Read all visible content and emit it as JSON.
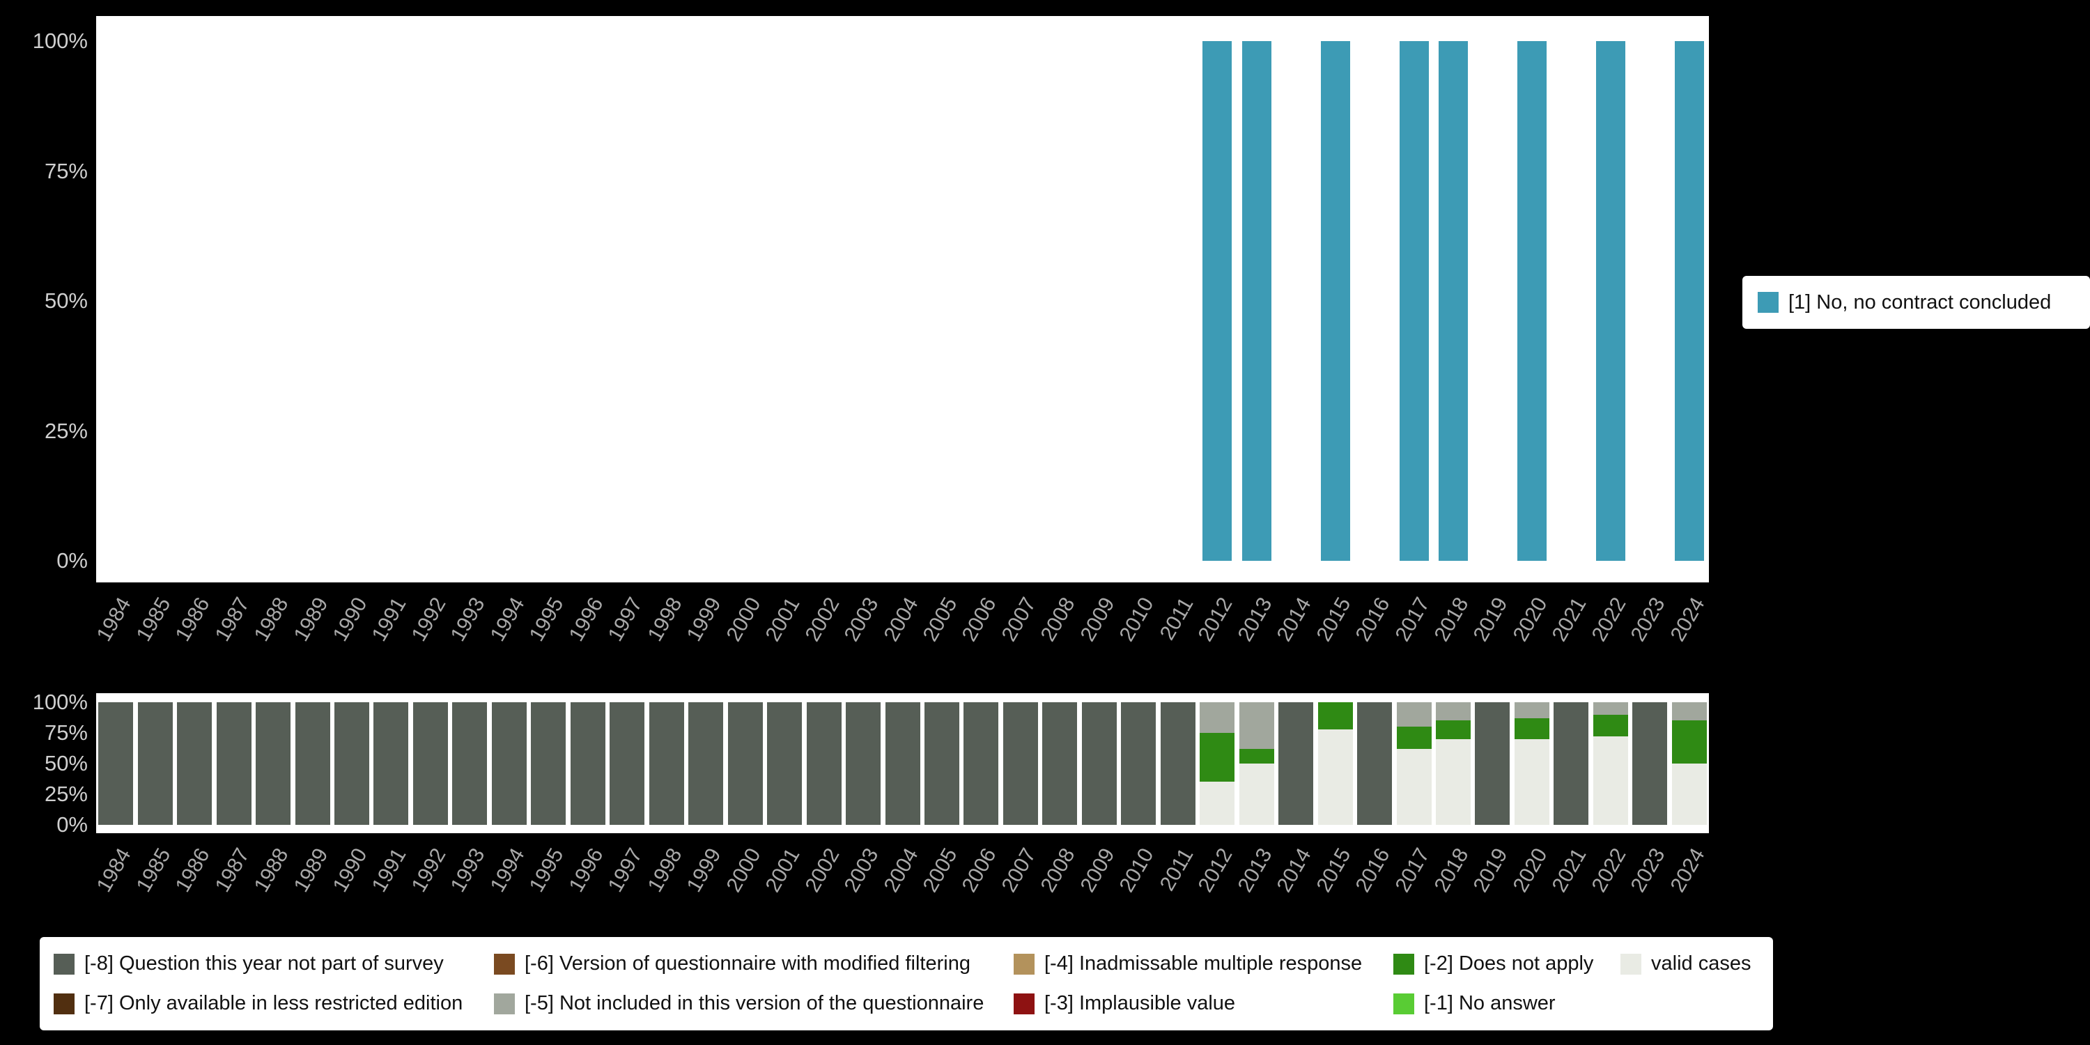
{
  "page": {
    "background": "#000000"
  },
  "axis": {
    "yticks": [
      "0%",
      "25%",
      "50%",
      "75%",
      "100%"
    ]
  },
  "chart_data": [
    {
      "id": "answers",
      "type": "bar",
      "stacked": true,
      "percent": true,
      "title": "",
      "xlabel": "",
      "ylabel": "",
      "ylim": [
        0,
        100
      ],
      "grid": false,
      "legend_position": "right",
      "yticks": [
        "0%",
        "25%",
        "50%",
        "75%",
        "100%"
      ],
      "categories": [
        "1984",
        "1985",
        "1986",
        "1987",
        "1988",
        "1989",
        "1990",
        "1991",
        "1992",
        "1993",
        "1994",
        "1995",
        "1996",
        "1997",
        "1998",
        "1999",
        "2000",
        "2001",
        "2002",
        "2003",
        "2004",
        "2005",
        "2006",
        "2007",
        "2008",
        "2009",
        "2010",
        "2011",
        "2012",
        "2013",
        "2014",
        "2015",
        "2016",
        "2017",
        "2018",
        "2019",
        "2020",
        "2021",
        "2022",
        "2023",
        "2024"
      ],
      "series": [
        {
          "name": "[1] No, no contract concluded",
          "color": "#3d9bb5",
          "values": [
            0,
            0,
            0,
            0,
            0,
            0,
            0,
            0,
            0,
            0,
            0,
            0,
            0,
            0,
            0,
            0,
            0,
            0,
            0,
            0,
            0,
            0,
            0,
            0,
            0,
            0,
            0,
            0,
            100,
            100,
            0,
            100,
            0,
            100,
            100,
            0,
            100,
            0,
            100,
            0,
            100
          ]
        }
      ],
      "legend": {
        "items": [
          {
            "label": "[1] No, no contract concluded",
            "color": "#3d9bb5"
          }
        ]
      }
    },
    {
      "id": "missings",
      "type": "bar",
      "stacked": true,
      "percent": true,
      "title": "",
      "xlabel": "",
      "ylabel": "",
      "ylim": [
        0,
        100
      ],
      "grid": false,
      "legend_position": "bottom",
      "yticks": [
        "0%",
        "25%",
        "50%",
        "75%",
        "100%"
      ],
      "categories": [
        "1984",
        "1985",
        "1986",
        "1987",
        "1988",
        "1989",
        "1990",
        "1991",
        "1992",
        "1993",
        "1994",
        "1995",
        "1996",
        "1997",
        "1998",
        "1999",
        "2000",
        "2001",
        "2002",
        "2003",
        "2004",
        "2005",
        "2006",
        "2007",
        "2008",
        "2009",
        "2010",
        "2011",
        "2012",
        "2013",
        "2014",
        "2015",
        "2016",
        "2017",
        "2018",
        "2019",
        "2020",
        "2021",
        "2022",
        "2023",
        "2024"
      ],
      "series": [
        {
          "name": "valid cases",
          "color": "#e9ebe4",
          "values": [
            0,
            0,
            0,
            0,
            0,
            0,
            0,
            0,
            0,
            0,
            0,
            0,
            0,
            0,
            0,
            0,
            0,
            0,
            0,
            0,
            0,
            0,
            0,
            0,
            0,
            0,
            0,
            0,
            35,
            50,
            0,
            78,
            0,
            62,
            70,
            0,
            70,
            0,
            72,
            0,
            50
          ]
        },
        {
          "name": "[-2] Does not apply",
          "color": "#2f8a14",
          "values": [
            0,
            0,
            0,
            0,
            0,
            0,
            0,
            0,
            0,
            0,
            0,
            0,
            0,
            0,
            0,
            0,
            0,
            0,
            0,
            0,
            0,
            0,
            0,
            0,
            0,
            0,
            0,
            0,
            40,
            12,
            0,
            22,
            0,
            18,
            15,
            0,
            17,
            0,
            18,
            0,
            35
          ]
        },
        {
          "name": "[-5] Not included in this version of the questionnaire",
          "color": "#a1a79d",
          "values": [
            0,
            0,
            0,
            0,
            0,
            0,
            0,
            0,
            0,
            0,
            0,
            0,
            0,
            0,
            0,
            0,
            0,
            0,
            0,
            0,
            0,
            0,
            0,
            0,
            0,
            0,
            0,
            0,
            25,
            38,
            0,
            0,
            0,
            20,
            15,
            0,
            13,
            0,
            10,
            0,
            15
          ]
        },
        {
          "name": "[-8] Question this year not part of survey",
          "color": "#565e56",
          "values": [
            100,
            100,
            100,
            100,
            100,
            100,
            100,
            100,
            100,
            100,
            100,
            100,
            100,
            100,
            100,
            100,
            100,
            100,
            100,
            100,
            100,
            100,
            100,
            100,
            100,
            100,
            100,
            100,
            0,
            0,
            100,
            0,
            100,
            0,
            0,
            100,
            0,
            100,
            0,
            100,
            0
          ]
        }
      ],
      "legend": {
        "items": [
          {
            "label": "[-8] Question this year not part of survey",
            "color": "#565e56"
          },
          {
            "label": "[-7] Only available in less restricted edition",
            "color": "#512f10"
          },
          {
            "label": "[-6] Version of questionnaire with modified filtering",
            "color": "#7a4a21"
          },
          {
            "label": "[-5] Not included in this version of the questionnaire",
            "color": "#a1a79d"
          },
          {
            "label": "[-4] Inadmissable multiple response",
            "color": "#b3925c"
          },
          {
            "label": "[-3] Implausible value",
            "color": "#8e1212"
          },
          {
            "label": "[-2] Does not apply",
            "color": "#2f8a14"
          },
          {
            "label": "[-1] No answer",
            "color": "#59cc34"
          },
          {
            "label": "valid cases",
            "color": "#e9ebe4"
          }
        ]
      }
    }
  ]
}
